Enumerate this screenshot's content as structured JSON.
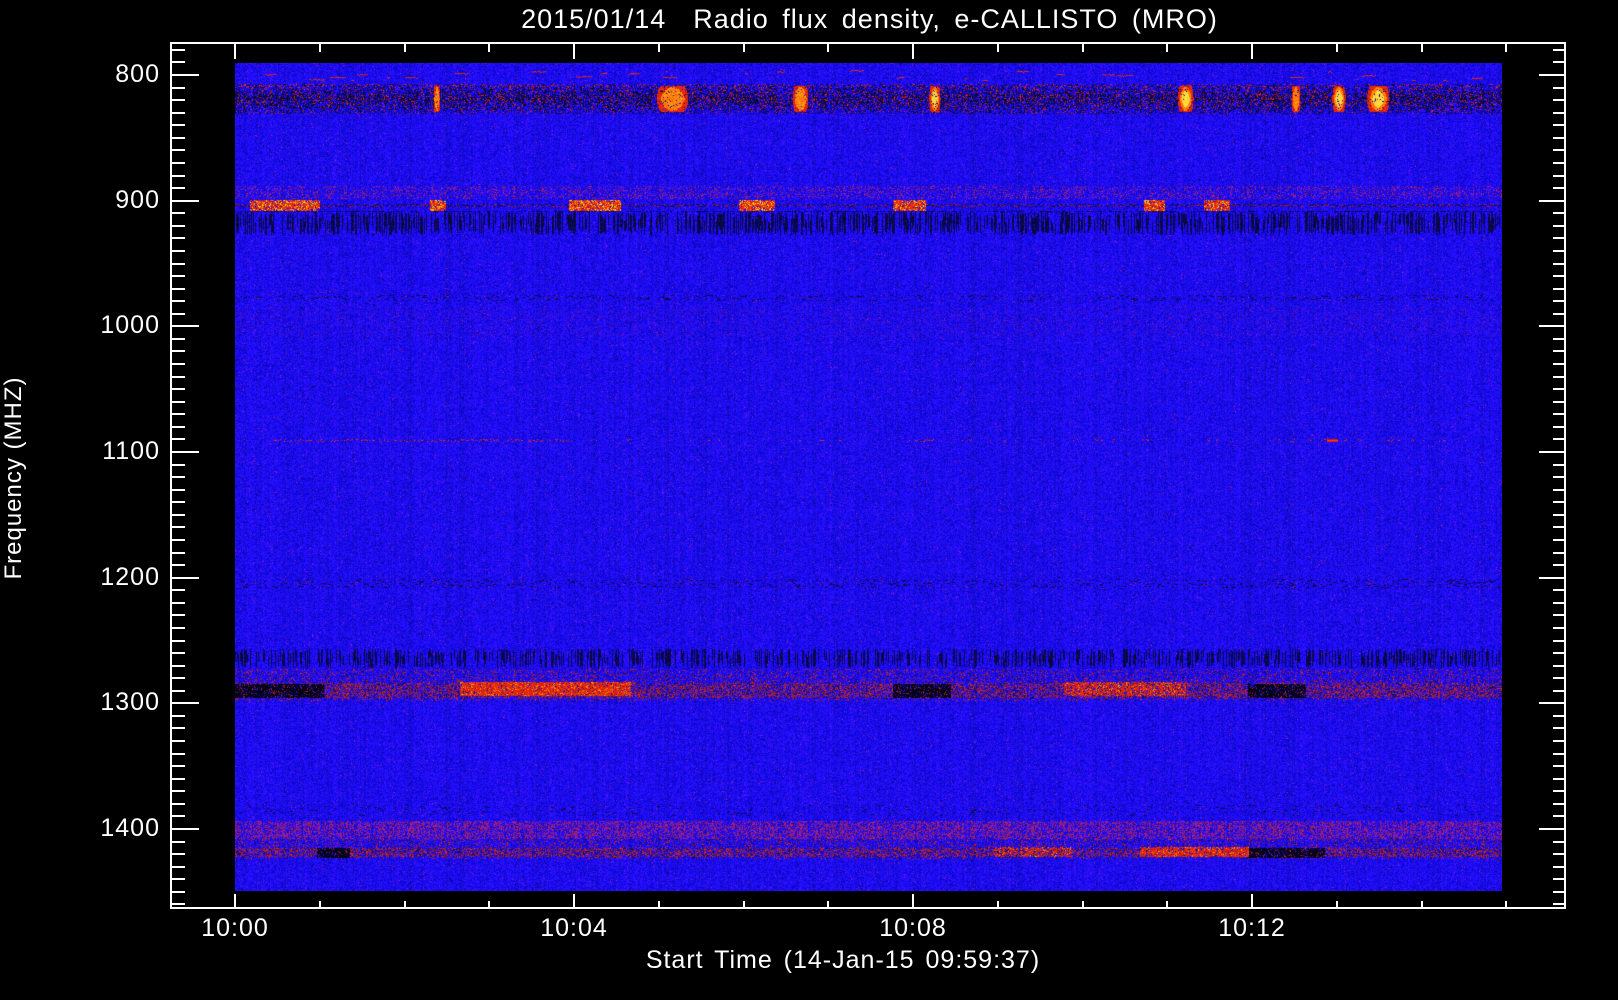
{
  "figure": {
    "title": "2015/01/14  Radio flux density, e-CALLISTO (MRO)",
    "x_axis_title": "Start Time (14-Jan-15 09:59:37)",
    "y_axis_title": "Frequency (MHZ)"
  },
  "chart_data": {
    "type": "heatmap",
    "subtype": "radio-spectrogram",
    "title": "2015/01/14  Radio flux density, e-CALLISTO (MRO)",
    "instrument": "e-CALLISTO (MRO)",
    "date": "2015/01/14",
    "xlabel": "Start Time (14-Jan-15 09:59:37)",
    "ylabel": "Frequency (MHZ)",
    "x_major_tick_labels": [
      "10:00",
      "10:04",
      "10:08",
      "10:12"
    ],
    "x_major_tick_minutes": [
      0,
      4,
      8,
      12
    ],
    "x_minor_tick_step_minutes": 1,
    "x_minor_tick_minutes_max": 15,
    "x_data_range": [
      "10:00",
      "10:15"
    ],
    "y_major_ticks_mhz": [
      800,
      900,
      1000,
      1100,
      1200,
      1300,
      1400
    ],
    "y_minor_tick_step_mhz": 10,
    "y_axis_range_mhz": [
      775,
      1464
    ],
    "y_data_range_mhz": [
      790,
      1450
    ],
    "y_axis_inverted": true,
    "grid": false,
    "legend": false,
    "background_color": "#1c16d8",
    "palette": {
      "quiet_background": "#2019d8",
      "weak": "#1a10a0",
      "absorption_dark": "#050519",
      "moderate_purple": "#7a1e96",
      "strong_red": "#d2200a",
      "stronger_orange": "#ff7808",
      "strongest_yellow": "#ffd22c"
    },
    "rfi_band_center_frequencies_mhz": [
      820,
      900,
      1090,
      1205,
      1290,
      1400,
      1415
    ],
    "bands": [
      {
        "name": "red-dash-row-800",
        "f0": 796,
        "f1": 805,
        "type": "red-dashes",
        "density": 0.03,
        "note": "sparse short red dashes just below 800 MHz"
      },
      {
        "name": "rfi-band-820",
        "f0": 807,
        "f1": 830,
        "type": "rfi-dark",
        "note": "strong persistent RFI: black band with red speckle and orange/yellow bursts",
        "hot_spots": [
          {
            "x": 0.159,
            "w": 0.006,
            "c": "red"
          },
          {
            "x": 0.345,
            "w": 0.028,
            "c": "red"
          },
          {
            "x": 0.446,
            "w": 0.014,
            "c": "orange"
          },
          {
            "x": 0.552,
            "w": 0.01,
            "c": "yellow"
          },
          {
            "x": 0.75,
            "w": 0.014,
            "c": "yellow"
          },
          {
            "x": 0.837,
            "w": 0.008,
            "c": "orange"
          },
          {
            "x": 0.871,
            "w": 0.012,
            "c": "yellow"
          },
          {
            "x": 0.902,
            "w": 0.02,
            "c": "yellow"
          }
        ]
      },
      {
        "name": "purple-fuzz-890",
        "f0": 888,
        "f1": 898,
        "type": "purple-fuzz",
        "density": 0.22,
        "note": "faint purple/red fuzz just above 900 MHz line"
      },
      {
        "name": "gsm-line-900",
        "f0": 899,
        "f1": 908,
        "type": "burst-line",
        "segments": [
          [
            0.012,
            0.067
          ],
          [
            0.154,
            0.166
          ],
          [
            0.264,
            0.304
          ],
          [
            0.398,
            0.426
          ],
          [
            0.52,
            0.545
          ],
          [
            0.718,
            0.734
          ],
          [
            0.765,
            0.785
          ]
        ],
        "note": "bright red/orange intermittent carrier at ~900 MHz"
      },
      {
        "name": "dark-stripes-915",
        "f0": 909,
        "f1": 927,
        "type": "dark-stripes",
        "density": 0.55,
        "note": "dark vertical striping below the 900 MHz line"
      },
      {
        "name": "faint-line-975",
        "f0": 975,
        "f1": 980,
        "type": "dark-speckle",
        "density": 0.3,
        "note": "faint dark line near 975 MHz"
      },
      {
        "name": "purple-wash-995",
        "f0": 985,
        "f1": 1008,
        "type": "purple-wash",
        "density": 0.07,
        "note": "very faint purple wash"
      },
      {
        "name": "dot-line-1090",
        "f0": 1088,
        "f1": 1093,
        "type": "dot-line",
        "dense": [
          0.03,
          0.26
        ],
        "dashes": [
          [
            0.862,
            0.87
          ]
        ],
        "note": "red dotted line at ~1090 MHz, densest 10:00-10:04"
      },
      {
        "name": "speckle-1205",
        "f0": 1201,
        "f1": 1208,
        "type": "dark-speckle",
        "density": 0.45,
        "note": "dark speckled line with occasional red dots near 1205 MHz"
      },
      {
        "name": "navy-band-1262",
        "f0": 1257,
        "f1": 1272,
        "type": "dark-stripes",
        "density": 0.45,
        "note": "darker blue band near 1260 MHz"
      },
      {
        "name": "rfi-band-1290",
        "f0": 1273,
        "f1": 1297,
        "type": "rfi-mixed",
        "black_runs": [
          [
            0.0,
            0.07
          ],
          [
            0.52,
            0.565
          ],
          [
            0.8,
            0.845
          ]
        ],
        "red_runs": [
          [
            0.178,
            0.312,
            0.85
          ],
          [
            0.655,
            0.75,
            0.6
          ]
        ],
        "note": "strong RFI band at ~1290 MHz: black blobs, bright red run 10:03-10:05"
      },
      {
        "name": "faint-speckle-1385",
        "f0": 1381,
        "f1": 1390,
        "type": "dark-speckle",
        "density": 0.2,
        "note": "faint dark speckle near 1385 MHz"
      },
      {
        "name": "purple-band-1400",
        "f0": 1394,
        "f1": 1407,
        "type": "purple-fuzz",
        "density": 0.5,
        "note": "purple/maroon speckled band at ~1400 MHz"
      },
      {
        "name": "rfi-band-1415",
        "f0": 1407,
        "f1": 1423,
        "type": "rfi-mixed",
        "black_runs": [
          [
            0.065,
            0.09
          ],
          [
            0.8,
            0.86
          ]
        ],
        "red_runs": [
          [
            0.6,
            0.66,
            0.5
          ],
          [
            0.715,
            0.8,
            0.75
          ]
        ],
        "note": "mixed red/dark speckled band at ~1415 MHz"
      }
    ]
  }
}
